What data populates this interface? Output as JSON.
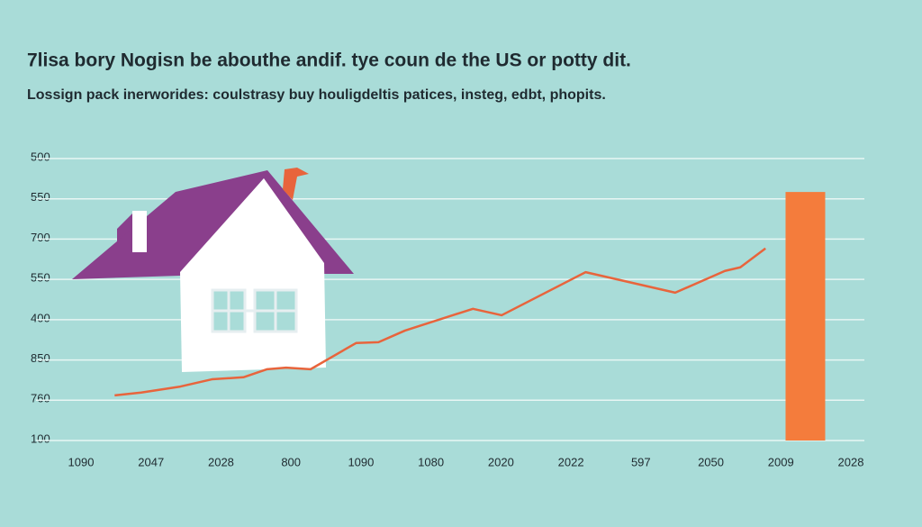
{
  "chart_data": {
    "type": "line",
    "title": "7lisa bory Nogisn be abouthe andif. tye coun de the US or potty dit.",
    "subtitle": "Lossign pack inerworides: coulstrasy buy houligdeltis patices, insteg, edbt, phopits.",
    "categories": [
      "1090",
      "2047",
      "2028",
      "800",
      "1090",
      "1080",
      "2020",
      "2022",
      "597",
      "2050",
      "2009",
      "2028"
    ],
    "xlim": [
      0,
      11
    ],
    "ylim": [
      0,
      7
    ],
    "yticks": [
      {
        "value": 7,
        "label": "500"
      },
      {
        "value": 6,
        "label": "550"
      },
      {
        "value": 5,
        "label": "700"
      },
      {
        "value": 4,
        "label": "550"
      },
      {
        "value": 3,
        "label": "400"
      },
      {
        "value": 2,
        "label": "850"
      },
      {
        "value": 1,
        "label": "760"
      },
      {
        "value": 0,
        "label": "100"
      }
    ],
    "grid": true,
    "line": {
      "color": "#e8643c",
      "x": [
        0.48,
        0.86,
        1.42,
        1.87,
        2.32,
        2.66,
        2.93,
        3.28,
        3.93,
        4.25,
        4.63,
        5.6,
        6.01,
        7.21,
        8.49,
        9.2,
        9.42,
        9.78
      ],
      "values": [
        1.12,
        1.19,
        1.34,
        1.52,
        1.57,
        1.77,
        1.81,
        1.77,
        2.42,
        2.44,
        2.73,
        3.27,
        3.11,
        4.18,
        3.67,
        4.21,
        4.3,
        4.77
      ]
    },
    "bar": {
      "color": "#f47c3c",
      "x": 10.35,
      "value": 6.17
    }
  }
}
